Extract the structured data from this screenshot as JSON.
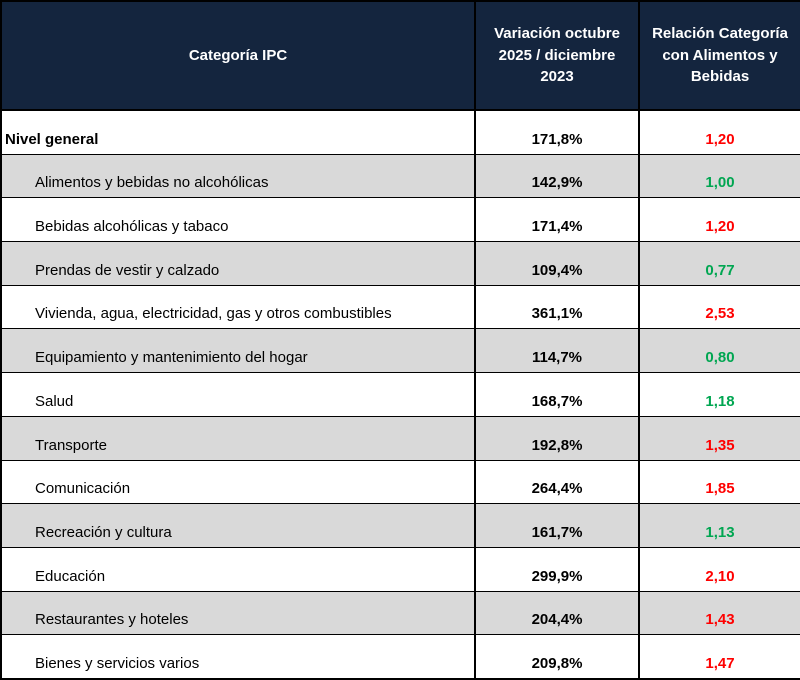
{
  "chart_data": {
    "type": "table",
    "columns": [
      "Categoría IPC",
      "Variación octubre 2025 / diciembre 2023",
      "Relación Categoría con Alimentos y Bebidas"
    ],
    "rows": [
      {
        "category": "Nivel general",
        "variation": "171,8%",
        "ratio": "1,20",
        "ratio_color": "red",
        "top_level": true
      },
      {
        "category": "Alimentos y bebidas no alcohólicas",
        "variation": "142,9%",
        "ratio": "1,00",
        "ratio_color": "green",
        "top_level": false
      },
      {
        "category": "Bebidas alcohólicas y tabaco",
        "variation": "171,4%",
        "ratio": "1,20",
        "ratio_color": "red",
        "top_level": false
      },
      {
        "category": "Prendas de vestir y calzado",
        "variation": "109,4%",
        "ratio": "0,77",
        "ratio_color": "green",
        "top_level": false
      },
      {
        "category": "Vivienda, agua, electricidad, gas y otros combustibles",
        "variation": "361,1%",
        "ratio": "2,53",
        "ratio_color": "red",
        "top_level": false
      },
      {
        "category": "Equipamiento y mantenimiento del hogar",
        "variation": "114,7%",
        "ratio": "0,80",
        "ratio_color": "green",
        "top_level": false
      },
      {
        "category": "Salud",
        "variation": "168,7%",
        "ratio": "1,18",
        "ratio_color": "green",
        "top_level": false
      },
      {
        "category": "Transporte",
        "variation": "192,8%",
        "ratio": "1,35",
        "ratio_color": "red",
        "top_level": false
      },
      {
        "category": "Comunicación",
        "variation": "264,4%",
        "ratio": "1,85",
        "ratio_color": "red",
        "top_level": false
      },
      {
        "category": "Recreación y cultura",
        "variation": "161,7%",
        "ratio": "1,13",
        "ratio_color": "green",
        "top_level": false
      },
      {
        "category": "Educación",
        "variation": "299,9%",
        "ratio": "2,10",
        "ratio_color": "red",
        "top_level": false
      },
      {
        "category": "Restaurantes y hoteles",
        "variation": "204,4%",
        "ratio": "1,43",
        "ratio_color": "red",
        "top_level": false
      },
      {
        "category": "Bienes y servicios varios",
        "variation": "209,8%",
        "ratio": "1,47",
        "ratio_color": "red",
        "top_level": false
      }
    ]
  },
  "colors": {
    "header_bg": "#14253E",
    "alt_row_bg": "#D9D9D9",
    "red": "#FF0000",
    "green": "#00A651"
  }
}
